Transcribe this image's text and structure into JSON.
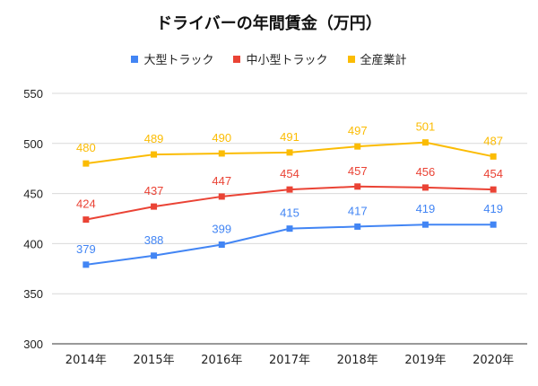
{
  "chart_data": {
    "type": "line",
    "title": "ドライバーの年間賃金（万円）",
    "categories": [
      "2014年",
      "2015年",
      "2016年",
      "2017年",
      "2018年",
      "2019年",
      "2020年"
    ],
    "ylim": [
      300,
      550
    ],
    "yticks": [
      300,
      350,
      400,
      450,
      500,
      550
    ],
    "grid": true,
    "legend_position": "top-center",
    "series": [
      {
        "name": "大型トラック",
        "color": "#4285F4",
        "values": [
          379,
          388,
          399,
          415,
          417,
          419,
          419
        ]
      },
      {
        "name": "中小型トラック",
        "color": "#EA4335",
        "values": [
          424,
          437,
          447,
          454,
          457,
          456,
          454
        ]
      },
      {
        "name": "全産業計",
        "color": "#FBBC04",
        "values": [
          480,
          489,
          490,
          491,
          497,
          501,
          487
        ]
      }
    ]
  }
}
